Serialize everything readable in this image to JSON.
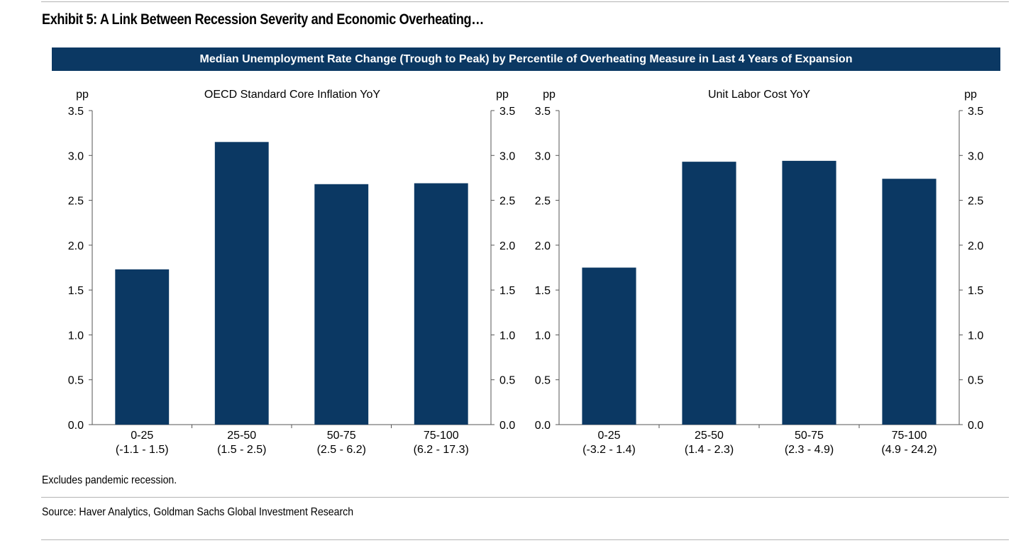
{
  "header": {
    "exhibit_title": "Exhibit 5: A Link Between Recession Severity and Economic Overheating…",
    "banner": "Median Unemployment Rate Change (Trough to Peak) by Percentile of Overheating Measure in Last 4 Years of Expansion"
  },
  "footer": {
    "note": "Excludes pandemic recession.",
    "source": "Source: Haver Analytics, Goldman Sachs Global Investment Research"
  },
  "colors": {
    "bar": "#0b3863",
    "banner": "#0b3863",
    "axis": "#555555"
  },
  "chart_data": [
    {
      "type": "bar",
      "title": "OECD Standard Core Inflation YoY",
      "ylabel": "pp",
      "y2label": "pp",
      "ylim": [
        0,
        3.5
      ],
      "yticks": [
        "0.0",
        "0.5",
        "1.0",
        "1.5",
        "2.0",
        "2.5",
        "3.0",
        "3.5"
      ],
      "categories": [
        "0-25",
        "25-50",
        "50-75",
        "75-100"
      ],
      "category_ranges": [
        "(-1.1 - 1.5)",
        "(1.5 - 2.5)",
        "(2.5 - 6.2)",
        "(6.2 - 17.3)"
      ],
      "values": [
        1.73,
        3.15,
        2.68,
        2.69
      ],
      "grid": false,
      "legend": "none"
    },
    {
      "type": "bar",
      "title": "Unit Labor Cost YoY",
      "ylabel": "pp",
      "y2label": "pp",
      "ylim": [
        0,
        3.5
      ],
      "yticks": [
        "0.0",
        "0.5",
        "1.0",
        "1.5",
        "2.0",
        "2.5",
        "3.0",
        "3.5"
      ],
      "categories": [
        "0-25",
        "25-50",
        "50-75",
        "75-100"
      ],
      "category_ranges": [
        "(-3.2 - 1.4)",
        "(1.4 - 2.3)",
        "(2.3 - 4.9)",
        "(4.9 - 24.2)"
      ],
      "values": [
        1.75,
        2.93,
        2.94,
        2.74
      ],
      "grid": false,
      "legend": "none"
    }
  ]
}
